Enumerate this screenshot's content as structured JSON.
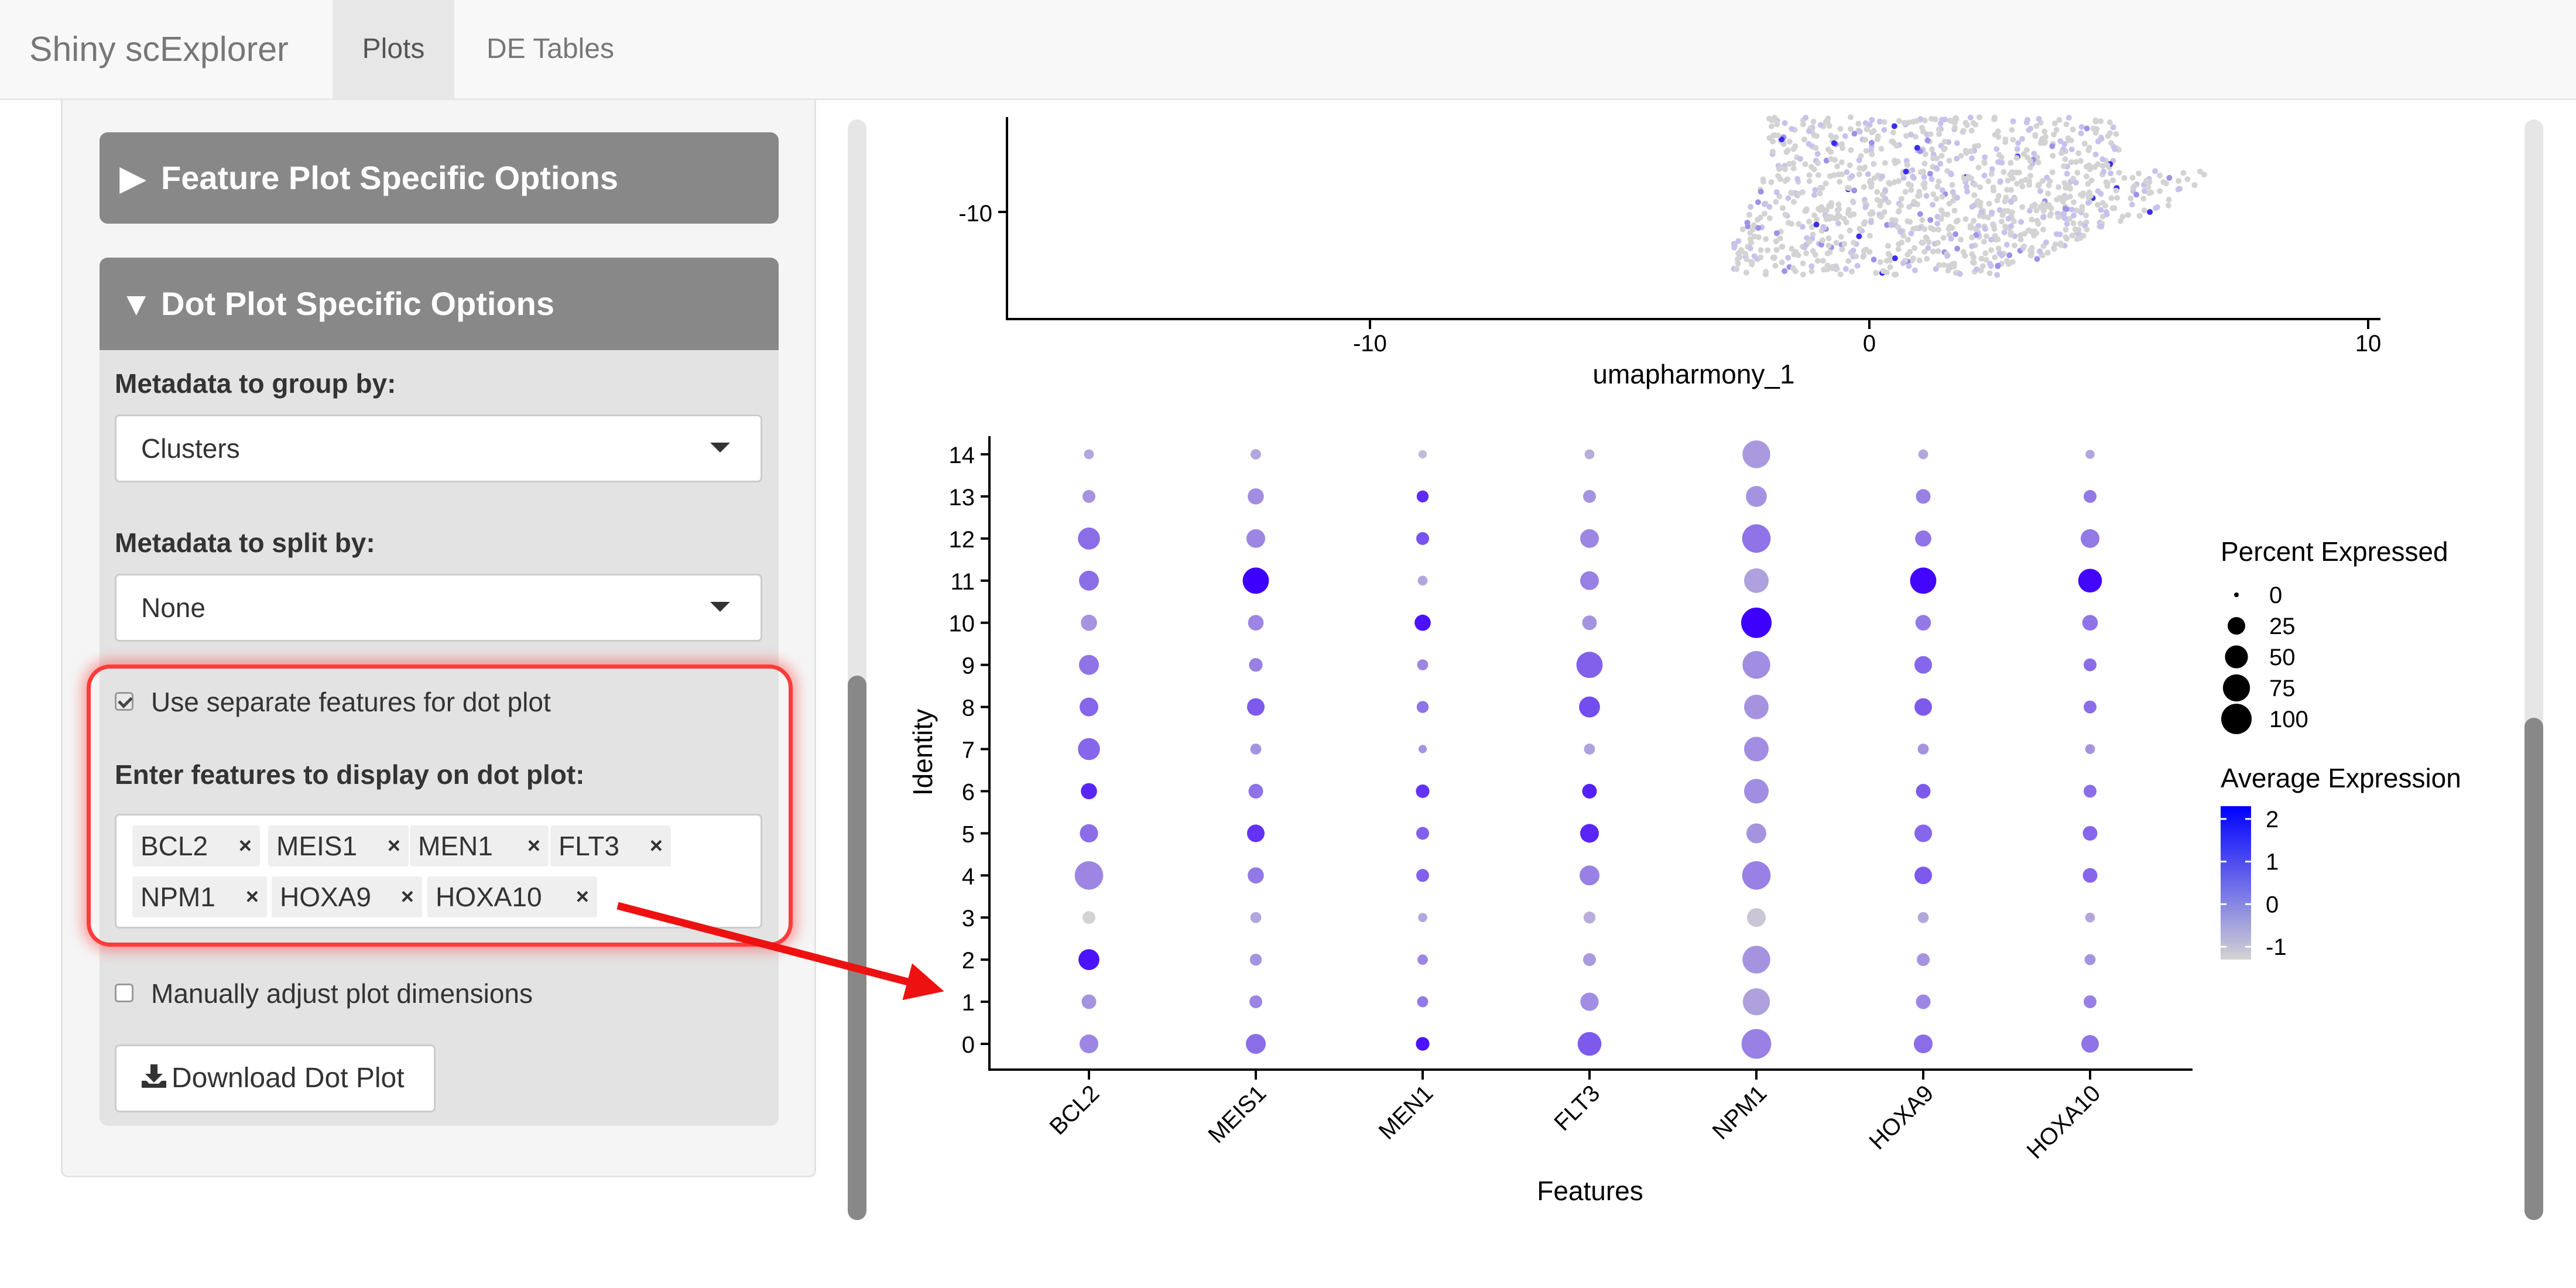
{
  "app": {
    "brand": "Shiny scExplorer",
    "tabs": [
      {
        "label": "Plots",
        "active": true
      },
      {
        "label": "DE Tables",
        "active": false
      }
    ]
  },
  "sidebar": {
    "feature_panel": {
      "title": "Feature Plot Specific Options",
      "collapsed": true
    },
    "dot_panel": {
      "title": "Dot Plot Specific Options",
      "collapsed": false,
      "group_label": "Metadata to group by:",
      "group_value": "Clusters",
      "split_label": "Metadata to split by:",
      "split_value": "None",
      "separate_label": "Use separate features for dot plot",
      "separate_checked": true,
      "features_label": "Enter features to display on dot plot:",
      "features": [
        "BCL2",
        "MEIS1",
        "MEN1",
        "FLT3",
        "NPM1",
        "HOXA9",
        "HOXA10"
      ],
      "manual_label": "Manually adjust plot dimensions",
      "manual_checked": false,
      "download_label": "Download Dot Plot"
    }
  },
  "umap": {
    "x_ticks": [
      "-10",
      "0",
      "10"
    ],
    "y_ticks": [
      "-10"
    ],
    "xlabel": "umapharmony_1"
  },
  "chart_data": {
    "type": "scatter",
    "kind": "dot plot",
    "xlabel": "Features",
    "ylabel": "Identity",
    "categories": [
      "BCL2",
      "MEIS1",
      "MEN1",
      "FLT3",
      "NPM1",
      "HOXA9",
      "HOXA10"
    ],
    "identities": [
      "0",
      "1",
      "2",
      "3",
      "4",
      "5",
      "6",
      "7",
      "8",
      "9",
      "10",
      "11",
      "12",
      "13",
      "14"
    ],
    "percent_expressed": [
      [
        30,
        15,
        40,
        10,
        85,
        28,
        20,
        45,
        30,
        35,
        20,
        35,
        45,
        10,
        4
      ],
      [
        35,
        10,
        8,
        6,
        20,
        25,
        15,
        6,
        25,
        12,
        18,
        70,
        30,
        20,
        5
      ],
      [
        12,
        6,
        5,
        3,
        10,
        10,
        12,
        2,
        8,
        6,
        20,
        4,
        10,
        8,
        2
      ],
      [
        55,
        28,
        10,
        8,
        35,
        30,
        15,
        6,
        40,
        70,
        15,
        30,
        30,
        10,
        4
      ],
      [
        95,
        75,
        80,
        30,
        85,
        35,
        60,
        60,
        60,
        80,
        100,
        60,
        85,
        40,
        80
      ],
      [
        30,
        15,
        10,
        6,
        25,
        25,
        15,
        6,
        25,
        25,
        18,
        70,
        20,
        15,
        4
      ],
      [
        25,
        10,
        6,
        4,
        15,
        15,
        10,
        4,
        10,
        10,
        18,
        55,
        30,
        10,
        3
      ]
    ],
    "average_expression": [
      [
        0.2,
        0.0,
        2.0,
        -1.0,
        0.2,
        0.6,
        1.7,
        0.7,
        0.7,
        0.5,
        0.0,
        0.6,
        0.6,
        0.0,
        -0.3
      ],
      [
        0.6,
        0.2,
        0.0,
        -0.3,
        0.4,
        1.5,
        0.5,
        0.0,
        0.9,
        0.3,
        0.2,
        2.3,
        0.2,
        0.1,
        -0.3
      ],
      [
        2.0,
        0.4,
        0.2,
        -0.3,
        0.8,
        0.8,
        1.5,
        0.0,
        0.5,
        0.2,
        2.0,
        -0.3,
        1.0,
        1.6,
        -0.6
      ],
      [
        0.9,
        0.1,
        -0.1,
        -0.4,
        0.3,
        1.7,
        1.8,
        -0.2,
        1.1,
        0.8,
        0.0,
        0.3,
        0.2,
        0.0,
        -0.4
      ],
      [
        0.3,
        -0.2,
        0.0,
        -0.8,
        0.3,
        0.0,
        0.1,
        0.1,
        0.0,
        0.1,
        2.3,
        -0.2,
        0.5,
        0.0,
        -0.1
      ],
      [
        0.6,
        0.2,
        0.0,
        -0.3,
        0.9,
        0.7,
        0.9,
        0.0,
        0.9,
        0.7,
        0.4,
        2.2,
        0.5,
        0.3,
        -0.3
      ],
      [
        0.5,
        0.3,
        0.0,
        -0.3,
        0.7,
        0.7,
        0.6,
        0.0,
        0.6,
        0.6,
        0.5,
        2.2,
        0.4,
        0.4,
        -0.3
      ]
    ],
    "size_legend": {
      "title": "Percent Expressed",
      "values": [
        0,
        25,
        50,
        75,
        100
      ]
    },
    "color_legend": {
      "title": "Average Expression",
      "ticks": [
        2,
        1,
        0,
        -1
      ],
      "low_color": "#D3D3D3",
      "high_color": "#0000FF"
    },
    "xlim_identity": [
      0,
      14
    ]
  },
  "colors": {
    "highlight": "#ff3b3b",
    "arrow": "#ee1111",
    "panel_head": "#888888"
  }
}
